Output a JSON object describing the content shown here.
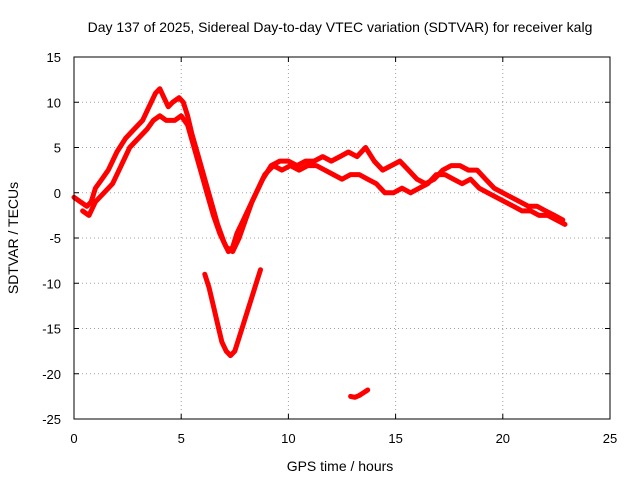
{
  "chart_data": {
    "type": "line",
    "title": "Day 137 of 2025, Sidereal Day-to-day VTEC variation (SDTVAR) for receiver kalg",
    "xlabel": "GPS time / hours",
    "ylabel": "SDTVAR / TECUs",
    "xlim": [
      0,
      25
    ],
    "ylim": [
      -25,
      15
    ],
    "xticks": [
      0,
      5,
      10,
      15,
      20,
      25
    ],
    "yticks": [
      -25,
      -20,
      -15,
      -10,
      -5,
      0,
      5,
      10,
      15
    ],
    "grid": true,
    "legend": "none",
    "color": "#ff0000",
    "series": [
      {
        "name": "main-upper",
        "x": [
          0.0,
          0.3,
          0.6,
          0.8,
          1.0,
          1.3,
          1.6,
          2.0,
          2.4,
          2.8,
          3.2,
          3.5,
          3.8,
          4.0,
          4.2,
          4.4,
          4.6,
          4.9,
          5.1,
          5.3,
          5.5,
          5.8,
          6.1,
          6.4,
          6.7,
          7.0,
          7.2,
          7.4,
          7.6,
          7.9,
          8.2,
          8.5,
          8.8,
          9.2,
          9.6,
          10.0,
          10.4,
          10.8,
          11.2,
          11.6,
          12.0,
          12.4,
          12.8,
          13.2,
          13.6,
          14.0,
          14.4,
          14.8,
          15.2,
          15.6,
          16.0,
          16.4,
          16.8,
          17.2,
          17.6,
          18.0,
          18.4,
          18.8,
          19.2,
          19.6,
          20.0,
          20.4,
          20.8,
          21.2,
          21.6,
          22.0,
          22.4,
          22.8
        ],
        "y": [
          -0.5,
          -1.0,
          -1.5,
          -1.0,
          0.5,
          1.5,
          2.5,
          4.5,
          6.0,
          7.0,
          8.0,
          9.5,
          11.0,
          11.5,
          10.5,
          9.5,
          10.0,
          10.5,
          10.0,
          8.5,
          6.5,
          4.0,
          1.5,
          -1.0,
          -3.5,
          -5.5,
          -6.5,
          -6.0,
          -4.5,
          -3.0,
          -1.5,
          0.0,
          1.5,
          3.0,
          3.5,
          3.5,
          3.0,
          3.5,
          3.5,
          4.0,
          3.5,
          4.0,
          4.5,
          4.0,
          5.0,
          3.5,
          2.5,
          3.0,
          3.5,
          2.5,
          1.5,
          1.0,
          1.5,
          2.5,
          3.0,
          3.0,
          2.5,
          2.5,
          1.5,
          0.5,
          0.0,
          -0.5,
          -1.0,
          -1.5,
          -1.5,
          -2.0,
          -2.5,
          -3.0
        ]
      },
      {
        "name": "main-lower",
        "x": [
          0.4,
          0.7,
          1.0,
          1.4,
          1.8,
          2.2,
          2.6,
          3.0,
          3.4,
          3.7,
          4.0,
          4.3,
          4.7,
          5.0,
          5.3,
          5.6,
          5.9,
          6.2,
          6.5,
          6.8,
          7.1,
          7.4,
          7.7,
          8.0,
          8.3,
          8.6,
          8.9,
          9.3,
          9.7,
          10.1,
          10.5,
          10.9,
          11.3,
          11.7,
          12.1,
          12.5,
          12.9,
          13.3,
          13.7,
          14.1,
          14.5,
          14.9,
          15.3,
          15.7,
          16.1,
          16.5,
          16.9,
          17.3,
          17.7,
          18.1,
          18.5,
          18.9,
          19.3,
          19.7,
          20.1,
          20.5,
          20.9,
          21.3,
          21.7,
          22.1,
          22.5,
          22.9
        ],
        "y": [
          -2.0,
          -2.5,
          -1.0,
          0.0,
          1.0,
          3.0,
          5.0,
          6.0,
          7.0,
          8.0,
          8.5,
          8.0,
          8.0,
          8.5,
          7.5,
          5.0,
          2.5,
          0.0,
          -2.5,
          -4.5,
          -6.0,
          -6.5,
          -5.0,
          -3.0,
          -1.0,
          0.5,
          2.0,
          3.0,
          2.5,
          3.0,
          2.5,
          3.0,
          3.0,
          2.5,
          2.0,
          1.5,
          2.0,
          2.0,
          1.5,
          1.0,
          0.0,
          0.0,
          0.5,
          0.0,
          0.5,
          1.0,
          2.0,
          2.0,
          1.5,
          1.0,
          1.5,
          0.5,
          0.0,
          -0.5,
          -1.0,
          -1.5,
          -2.0,
          -2.0,
          -2.5,
          -2.5,
          -3.0,
          -3.5
        ]
      },
      {
        "name": "dip-segment",
        "x": [
          6.1,
          6.3,
          6.5,
          6.7,
          6.9,
          7.1,
          7.3,
          7.5,
          7.7,
          7.9,
          8.1,
          8.3,
          8.5,
          8.7
        ],
        "y": [
          -9.0,
          -10.5,
          -12.5,
          -14.5,
          -16.5,
          -17.5,
          -18.0,
          -17.5,
          -16.0,
          -14.5,
          -13.0,
          -11.5,
          -10.0,
          -8.5
        ]
      },
      {
        "name": "small-segment",
        "x": [
          12.9,
          13.1,
          13.3,
          13.5,
          13.7
        ],
        "y": [
          -22.5,
          -22.6,
          -22.4,
          -22.1,
          -21.8
        ]
      }
    ]
  }
}
